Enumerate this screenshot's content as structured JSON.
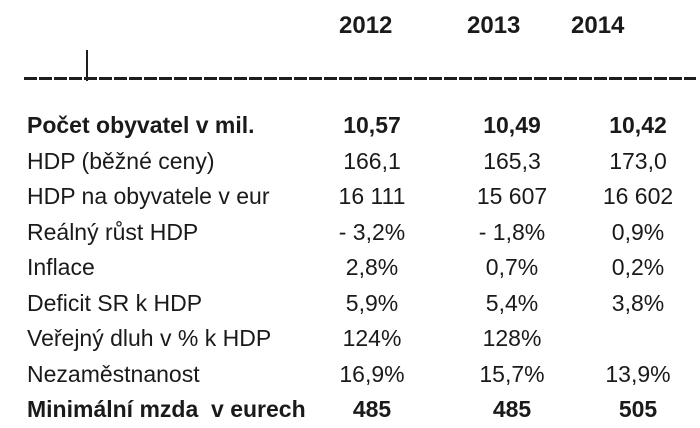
{
  "table": {
    "columns": [
      "2012",
      "2013",
      "2014"
    ],
    "rows": [
      {
        "label": "Počet obyvatel v mil.",
        "values": [
          "10,57",
          "10,49",
          "10,42"
        ]
      },
      {
        "label": "HDP (běžné ceny)",
        "values": [
          "166,1",
          "165,3",
          "173,0"
        ]
      },
      {
        "label": "HDP na obyvatele v eur",
        "values": [
          "16 111",
          "15 607",
          "16 602"
        ]
      },
      {
        "label": "Reálný růst HDP",
        "values": [
          "- 3,2%",
          "- 1,8%",
          "0,9%"
        ]
      },
      {
        "label": "Inflace",
        "values": [
          "2,8%",
          "0,7%",
          "0,2%"
        ]
      },
      {
        "label": "Deficit SR k HDP",
        "values": [
          "5,9%",
          "5,4%",
          "3,8%"
        ]
      },
      {
        "label": "Veřejný dluh v % k HDP",
        "values": [
          "124%",
          "128%",
          ""
        ]
      },
      {
        "label": "Nezaměstnanost",
        "values": [
          "16,9%",
          "15,7%",
          "13,9%"
        ]
      },
      {
        "label": "Minimální mzda  v eurech",
        "values": [
          "485",
          "485",
          "505"
        ]
      }
    ]
  },
  "colors": {
    "text": "#1a1a1a",
    "background": "#ffffff"
  }
}
